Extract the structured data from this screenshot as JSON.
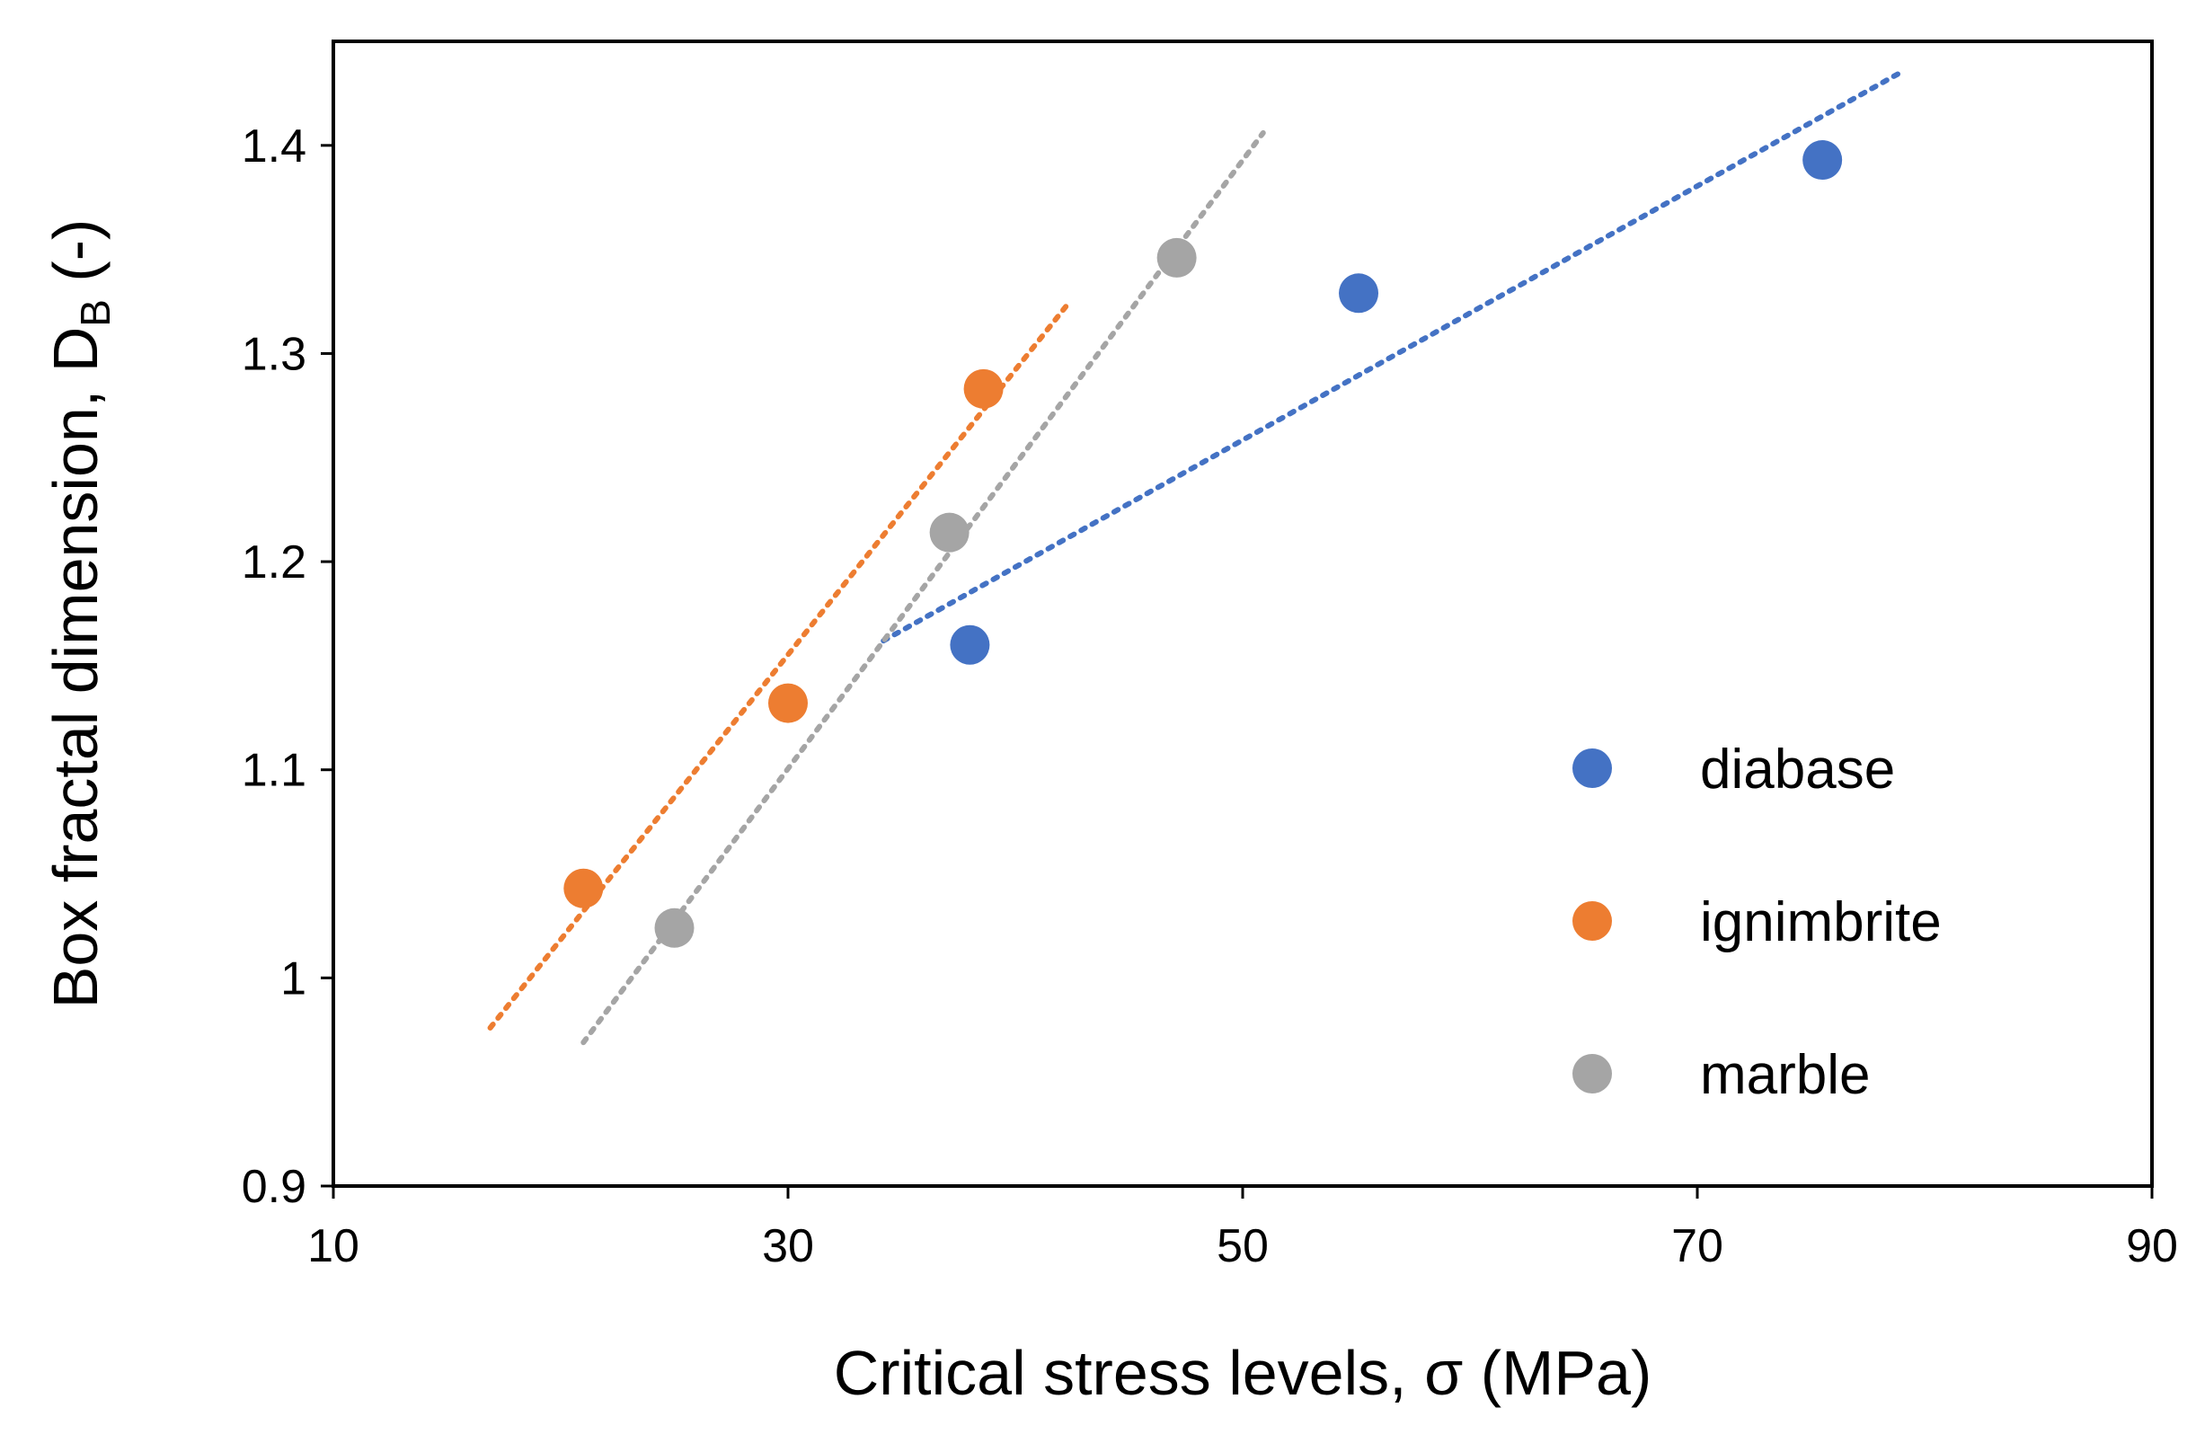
{
  "chart_data": {
    "type": "scatter",
    "xlabel": "Critical stress levels, σ (MPa)",
    "ylabel": {
      "main": "Box fractal dimension, D",
      "subscript": "B",
      "suffix": " (-)"
    },
    "xlim": [
      10,
      90
    ],
    "ylim": [
      0.9,
      1.45
    ],
    "xticks": [
      10,
      30,
      50,
      70,
      90
    ],
    "xtick_labels": [
      "10",
      "30",
      "50",
      "70",
      "90"
    ],
    "yticks": [
      0.9,
      1.0,
      1.1,
      1.2,
      1.3,
      1.4
    ],
    "ytick_labels": [
      "0.9",
      "1",
      "1.1",
      "1.2",
      "1.3",
      "1.4"
    ],
    "grid": false,
    "legend_position": "bottom-right",
    "series": [
      {
        "name": "diabase",
        "color": "#4472C4",
        "points": [
          [
            38,
            1.16
          ],
          [
            55.1,
            1.329
          ],
          [
            75.5,
            1.393
          ]
        ],
        "trendline": [
          [
            34.2,
            1.162
          ],
          [
            79.1,
            1.436
          ]
        ]
      },
      {
        "name": "ignimbrite",
        "color": "#ED7D31",
        "points": [
          [
            21,
            1.043
          ],
          [
            30,
            1.132
          ],
          [
            38.6,
            1.283
          ]
        ],
        "trendline": [
          [
            16.9,
            0.976
          ],
          [
            42.4,
            1.325
          ]
        ]
      },
      {
        "name": "marble",
        "color": "#A5A5A5",
        "points": [
          [
            25,
            1.024
          ],
          [
            37.1,
            1.214
          ],
          [
            47.1,
            1.346
          ]
        ],
        "trendline": [
          [
            21,
            0.969
          ],
          [
            50.9,
            1.406
          ]
        ]
      }
    ]
  }
}
